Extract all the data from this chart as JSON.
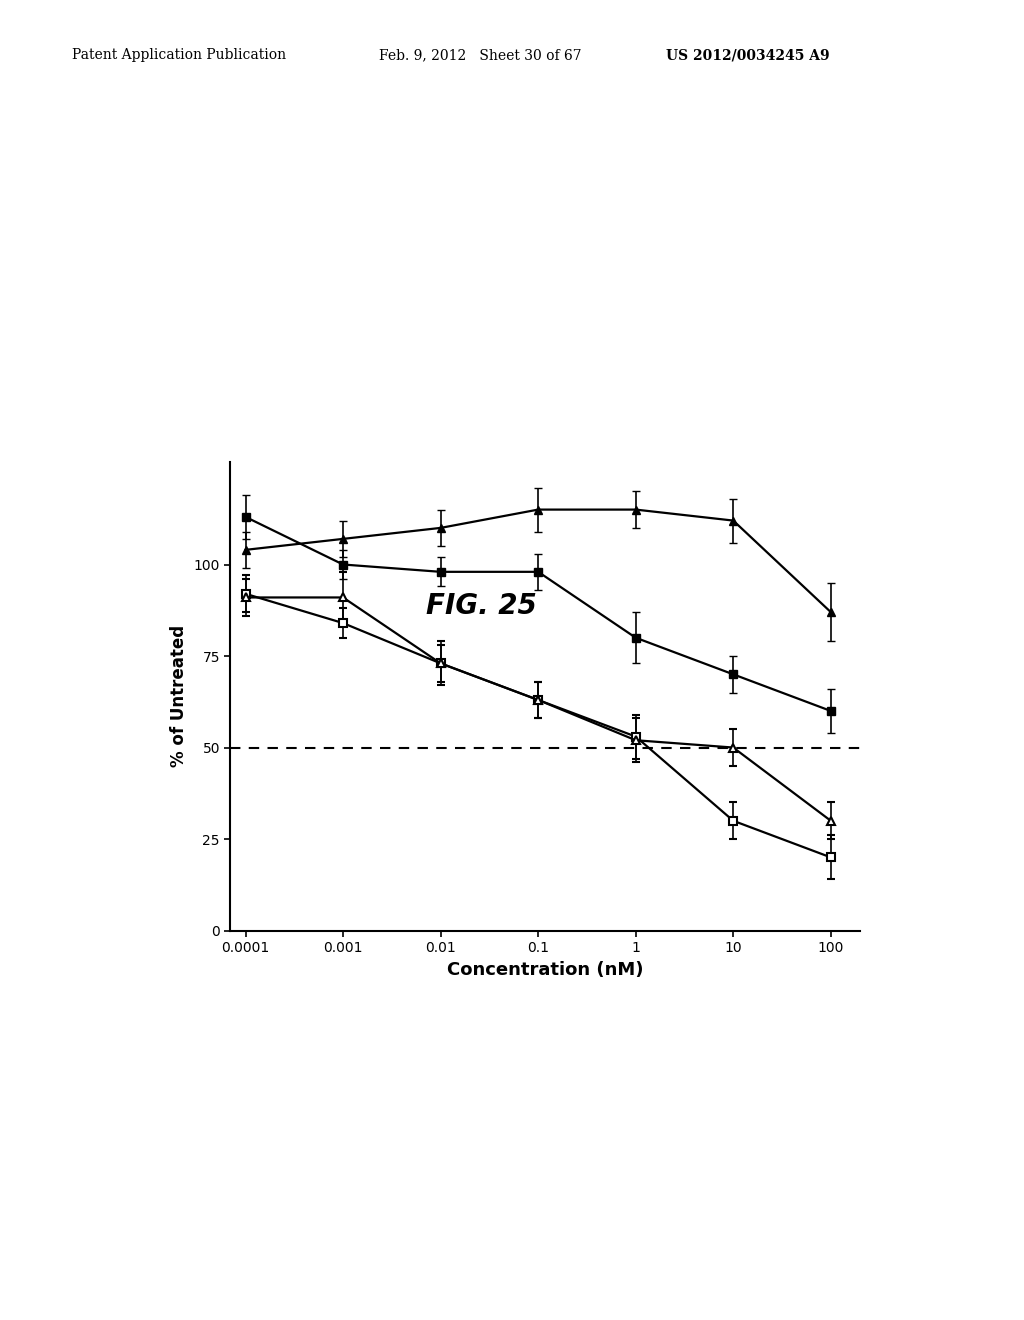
{
  "title": "FIG. 25",
  "xlabel": "Concentration (nM)",
  "ylabel": "% of Untreated",
  "header_left": "Patent Application Publication",
  "header_mid": "Feb. 9, 2012   Sheet 30 of 67",
  "header_right": "US 2012/0034245 A9",
  "x_values": [
    0.0001,
    0.001,
    0.01,
    0.1,
    1,
    10,
    100
  ],
  "series1_y": [
    113,
    100,
    98,
    98,
    80,
    70,
    60
  ],
  "series1_yerr": [
    6,
    4,
    4,
    5,
    7,
    5,
    6
  ],
  "series2_y": [
    104,
    107,
    110,
    115,
    115,
    112,
    87
  ],
  "series2_yerr": [
    5,
    5,
    5,
    6,
    5,
    6,
    8
  ],
  "series3_y": [
    92,
    84,
    73,
    63,
    53,
    30,
    20
  ],
  "series3_yerr": [
    5,
    4,
    5,
    5,
    6,
    5,
    6
  ],
  "series4_y": [
    91,
    91,
    73,
    63,
    52,
    50,
    30
  ],
  "series4_yerr": [
    5,
    7,
    6,
    5,
    6,
    5,
    5
  ],
  "dashed_line_y": 50,
  "ylim": [
    0,
    128
  ],
  "yticks": [
    0,
    25,
    50,
    75,
    100
  ],
  "background_color": "#ffffff",
  "line_color": "#000000"
}
